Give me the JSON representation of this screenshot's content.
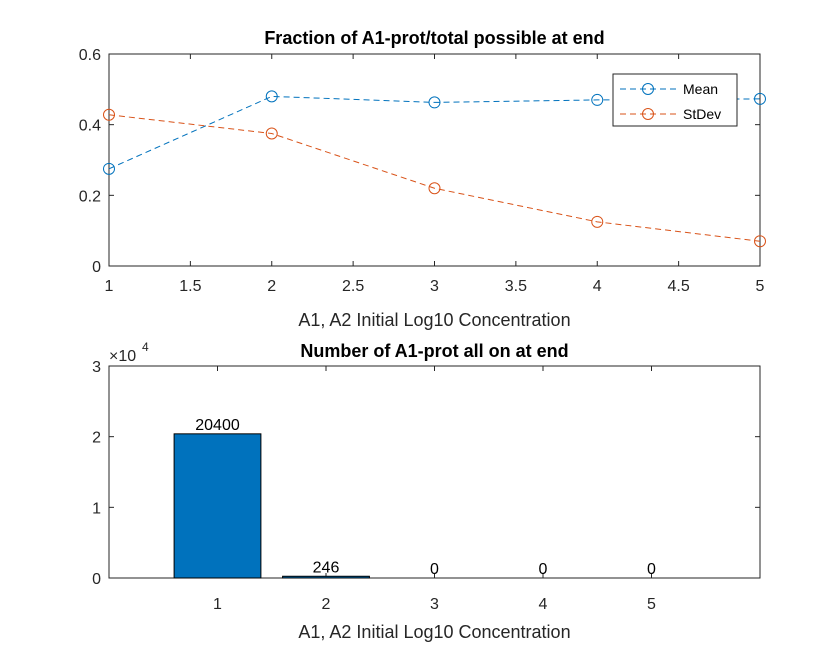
{
  "chart_data": [
    {
      "type": "line",
      "title": "Fraction of A1-prot/total possible at end",
      "xlabel": "A1, A2 Initial Log10 Concentration",
      "ylabel": "",
      "xlim": [
        1,
        5
      ],
      "ylim": [
        0,
        0.6
      ],
      "xticks": [
        "1",
        "1.5",
        "2",
        "2.5",
        "3",
        "3.5",
        "4",
        "4.5",
        "5"
      ],
      "yticks": [
        "0",
        "0.2",
        "0.4",
        "0.6"
      ],
      "x": [
        1,
        2,
        3,
        4,
        5
      ],
      "series": [
        {
          "name": "Mean",
          "values": [
            0.275,
            0.48,
            0.463,
            0.47,
            0.473
          ],
          "color": "#0072BD"
        },
        {
          "name": "StDev",
          "values": [
            0.428,
            0.375,
            0.22,
            0.125,
            0.07
          ],
          "color": "#D95319"
        }
      ],
      "legend": "top-right",
      "grid": false
    },
    {
      "type": "bar",
      "title": "Number of A1-prot all on at end",
      "xlabel": "A1, A2 Initial Log10 Concentration",
      "ylabel": "",
      "exponent_label": "×10",
      "exponent_power": "4",
      "categories": [
        "1",
        "2",
        "3",
        "4",
        "5"
      ],
      "values": [
        20400,
        246,
        0,
        0,
        0
      ],
      "data_labels": [
        "20400",
        "246",
        "0",
        "0",
        "0"
      ],
      "xlim": [
        0,
        6
      ],
      "ylim": [
        0,
        30000
      ],
      "yticks": [
        "0",
        "1",
        "2",
        "3"
      ],
      "color": "#0072BD",
      "grid": false
    }
  ]
}
